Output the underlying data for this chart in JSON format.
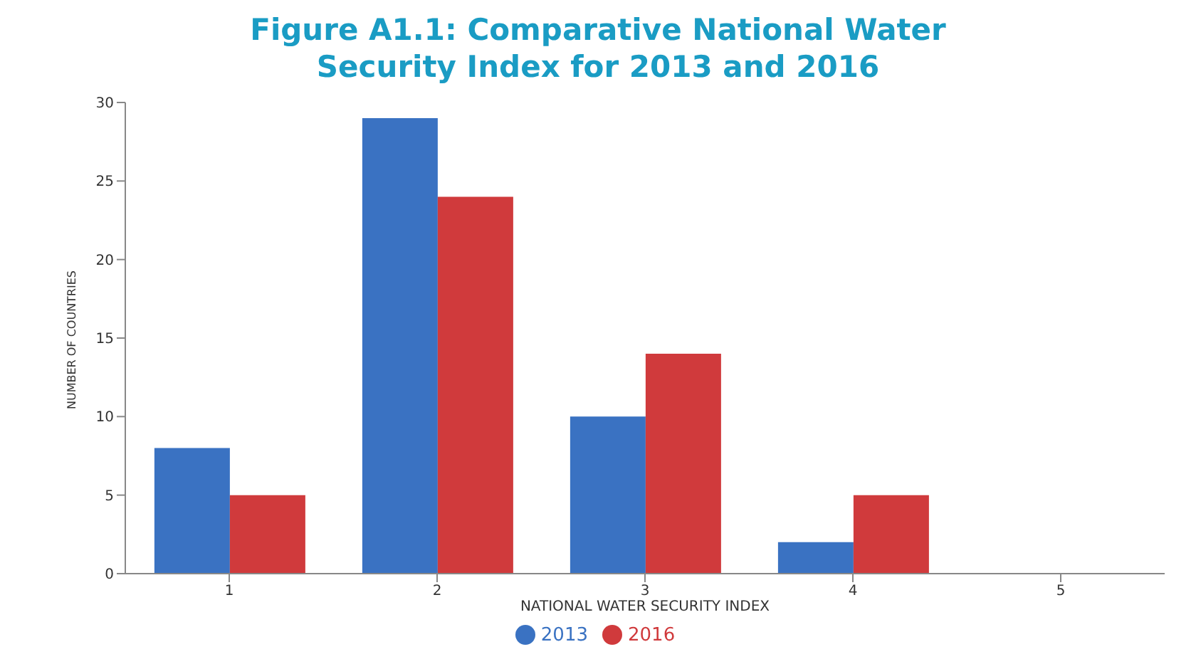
{
  "chart_data": {
    "type": "bar",
    "title": "Figure A1.1: Comparative National Water Security Index for 2013 and 2016",
    "xlabel": "NATIONAL WATER SECURITY INDEX",
    "ylabel": "NUMBER OF COUNTRIES",
    "categories": [
      "1",
      "2",
      "3",
      "4",
      "5"
    ],
    "series": [
      {
        "name": "2013",
        "color": "#3a72c2",
        "values": [
          8,
          29,
          10,
          2,
          0
        ]
      },
      {
        "name": "2016",
        "color": "#d03a3c",
        "values": [
          5,
          24,
          14,
          5,
          0
        ]
      }
    ],
    "ylim": [
      0,
      30
    ],
    "yticks": [
      0,
      5,
      10,
      15,
      20,
      25,
      30
    ],
    "grid": false,
    "legend": "bottom"
  }
}
